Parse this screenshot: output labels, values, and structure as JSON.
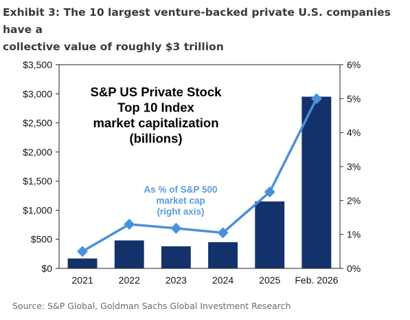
{
  "exhibit": {
    "title_line1": "Exhibit 3: The 10 largest venture-backed private U.S. companies have a",
    "title_line2": "collective value of roughly $3 trillion"
  },
  "chart_data": {
    "type": "bar",
    "categories": [
      "2021",
      "2022",
      "2023",
      "2024",
      "2025",
      "Feb. 2026"
    ],
    "series": [
      {
        "name": "S&P US Private Stock Top 10 Index market capitalization (billions)",
        "type": "bar",
        "axis": "left",
        "color": "#13326b",
        "values": [
          170,
          480,
          380,
          450,
          1150,
          2950
        ]
      },
      {
        "name": "As % of S&P 500 market cap (right axis)",
        "type": "line",
        "axis": "right",
        "color": "#4a90d9",
        "values": [
          0.5,
          1.3,
          1.18,
          1.05,
          2.25,
          5.0
        ]
      }
    ],
    "y_left": {
      "min": 0,
      "max": 3500,
      "ticks": [
        "$0",
        "$500",
        "$1,000",
        "$1,500",
        "$2,000",
        "$2,500",
        "$3,000",
        "$3,500"
      ]
    },
    "y_right": {
      "min": 0,
      "max": 6,
      "ticks": [
        "0%",
        "1%",
        "2%",
        "3%",
        "4%",
        "5%",
        "6%"
      ]
    },
    "bar_annotation": [
      "S&P US Private Stock",
      "Top 10 Index",
      "market capitalization",
      "(billions)"
    ],
    "line_annotation": [
      "As % of S&P 500",
      "market cap",
      "(right axis)"
    ],
    "grid": false,
    "legend": "none"
  },
  "source": "Source: S&P Global, Goldman Sachs Global Investment Research",
  "colors": {
    "bar": "#13326b",
    "line": "#4a90d9",
    "line_label": "#5b9bdb",
    "axis": "#222222"
  }
}
